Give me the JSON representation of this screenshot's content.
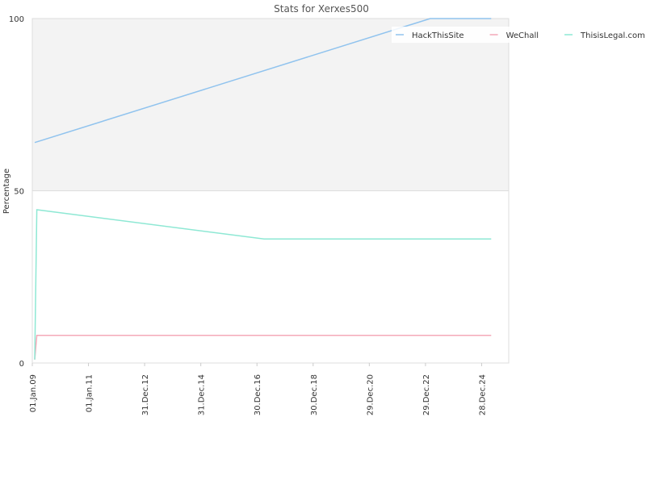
{
  "chart_data": {
    "type": "line",
    "title": "Stats for Xerxes500",
    "ylabel": "Percentage",
    "xlim": [
      "2009-01-01",
      "2025-12-15"
    ],
    "xticks": [
      {
        "value": "2009-01-01",
        "label": "01.Jan.09"
      },
      {
        "value": "2011-01-01",
        "label": "01.Jan.11"
      },
      {
        "value": "2012-12-31",
        "label": "31.Dec.12"
      },
      {
        "value": "2014-12-31",
        "label": "31.Dec.14"
      },
      {
        "value": "2016-12-30",
        "label": "30.Dec.16"
      },
      {
        "value": "2018-12-30",
        "label": "30.Dec.18"
      },
      {
        "value": "2020-12-29",
        "label": "29.Dec.20"
      },
      {
        "value": "2022-12-29",
        "label": "29.Dec.22"
      },
      {
        "value": "2024-12-28",
        "label": "28.Dec.24"
      }
    ],
    "ylim": [
      0,
      100
    ],
    "yticks": [
      0,
      50,
      100
    ],
    "grid": true,
    "legend": "top-right",
    "series": [
      {
        "name": "HackThisSite",
        "color": "#90c3ee",
        "x": [
          "2009-02-01",
          "2023-03-01",
          "2025-05-01"
        ],
        "values": [
          64,
          100,
          100
        ]
      },
      {
        "name": "WeChall",
        "color": "#f4a9b8",
        "x": [
          "2009-02-01",
          "2009-03-01",
          "2025-05-01"
        ],
        "values": [
          1,
          8,
          8
        ]
      },
      {
        "name": "ThisisLegal.com",
        "color": "#8ee8d4",
        "x": [
          "2009-02-01",
          "2009-03-01",
          "2017-04-01",
          "2025-05-01"
        ],
        "values": [
          1,
          44.5,
          36,
          36
        ]
      }
    ]
  }
}
